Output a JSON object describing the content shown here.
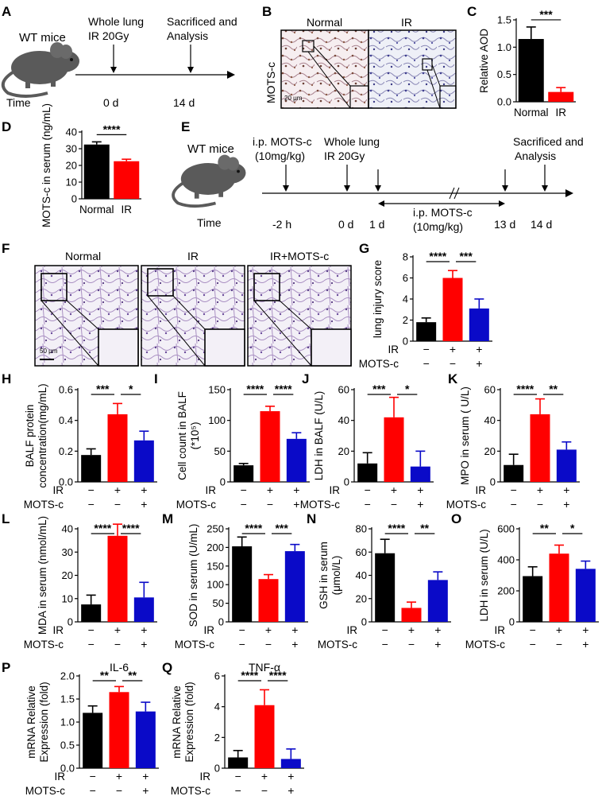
{
  "colors": {
    "black": "#000000",
    "red": "#ff0000",
    "blue": "#0a0ac8"
  },
  "panelA": {
    "letter": "A",
    "mouse": "WT mice",
    "ev1": [
      "Whole lung",
      "IR 20Gy"
    ],
    "ev2": [
      "Sacrificed and",
      "Analysis"
    ],
    "time": "Time",
    "t1": "0 d",
    "t2": "14 d"
  },
  "panelB": {
    "letter": "B",
    "normal": "Normal",
    "ir": "IR",
    "side": "MOTS-c",
    "scale": "20 μm"
  },
  "panelE": {
    "letter": "E",
    "mouse": "WT mice",
    "ev1": [
      "i.p. MOTS-c",
      "(10mg/kg)"
    ],
    "ev2": [
      "Whole lung",
      "IR 20Gy"
    ],
    "ev3": [
      "Sacrificed and",
      "Analysis"
    ],
    "mid": [
      "i.p. MOTS-c",
      "(10mg/kg)"
    ],
    "time": "Time",
    "ticks": [
      "-2 h",
      "0 d",
      "1 d",
      "13 d",
      "14 d"
    ]
  },
  "panelF": {
    "letter": "F",
    "titles": [
      "Normal",
      "IR",
      "IR+MOTS-c"
    ],
    "scale": "50 μm"
  },
  "treat": {
    "ir": "IR",
    "mots": "MOTS-c",
    "minus": "−",
    "plus": "+"
  },
  "chart_data": [
    {
      "id": "C",
      "type": "bar",
      "ylabel": "Relative AOD",
      "categories": [
        "Normal",
        "IR"
      ],
      "values": [
        1.15,
        0.18
      ],
      "errors": [
        0.22,
        0.08
      ],
      "colors": [
        "black",
        "red"
      ],
      "ylim": [
        0,
        1.5
      ],
      "ticks": [
        0.0,
        0.5,
        1.0,
        1.5
      ],
      "tick_labels": [
        "0.0",
        "0.5",
        "1.0",
        "1.5"
      ],
      "sig": [
        {
          "a": 0,
          "b": 1,
          "text": "***"
        }
      ]
    },
    {
      "id": "D",
      "type": "bar",
      "ylabel": "MOTS-c in serum (ng/mL)",
      "categories": [
        "Normal",
        "IR"
      ],
      "values": [
        32.5,
        22.5
      ],
      "errors": [
        1.6,
        1.2
      ],
      "colors": [
        "black",
        "red"
      ],
      "ylim": [
        0,
        40
      ],
      "ticks": [
        0,
        10,
        20,
        30,
        40
      ],
      "tick_labels": [
        "0",
        "10",
        "20",
        "30",
        "40"
      ],
      "sig": [
        {
          "a": 0,
          "b": 1,
          "text": "****"
        }
      ]
    },
    {
      "id": "G",
      "type": "bar",
      "ylabel": "lung injury score",
      "values": [
        1.8,
        6.0,
        3.1
      ],
      "errors": [
        0.4,
        0.7,
        0.9
      ],
      "colors": [
        "black",
        "red",
        "blue"
      ],
      "ylim": [
        0,
        8
      ],
      "ticks": [
        0,
        2,
        4,
        6,
        8
      ],
      "tick_labels": [
        "0",
        "2",
        "4",
        "6",
        "8"
      ],
      "ir": [
        "−",
        "+",
        "+"
      ],
      "mots": [
        "−",
        "−",
        "+"
      ],
      "sig": [
        {
          "a": 0,
          "b": 1,
          "text": "****"
        },
        {
          "a": 1,
          "b": 2,
          "text": "***"
        }
      ]
    },
    {
      "id": "H",
      "type": "bar",
      "ylabel": [
        "BALF protein",
        "concentration(mg/mL)"
      ],
      "values": [
        0.175,
        0.44,
        0.27
      ],
      "errors": [
        0.04,
        0.07,
        0.06
      ],
      "colors": [
        "black",
        "red",
        "blue"
      ],
      "ylim": [
        0,
        0.6
      ],
      "ticks": [
        0,
        0.2,
        0.4,
        0.6
      ],
      "tick_labels": [
        "0.0",
        "0.2",
        "0.4",
        "0.6"
      ],
      "ir": [
        "−",
        "+",
        "+"
      ],
      "mots": [
        "−",
        "−",
        "+"
      ],
      "sig": [
        {
          "a": 0,
          "b": 1,
          "text": "***"
        },
        {
          "a": 1,
          "b": 2,
          "text": "*"
        }
      ]
    },
    {
      "id": "I",
      "type": "bar",
      "ylabel": [
        "Cell count in BALF",
        "(*10⁵)"
      ],
      "values": [
        27,
        115,
        70
      ],
      "errors": [
        3,
        8,
        10
      ],
      "colors": [
        "black",
        "red",
        "blue"
      ],
      "ylim": [
        0,
        150
      ],
      "ticks": [
        0,
        50,
        100,
        150
      ],
      "tick_labels": [
        "0",
        "50",
        "100",
        "150"
      ],
      "ir": [
        "−",
        "+",
        "+"
      ],
      "mots": [
        "−",
        "−",
        "+"
      ],
      "sig": [
        {
          "a": 0,
          "b": 1,
          "text": "****"
        },
        {
          "a": 1,
          "b": 2,
          "text": "****"
        }
      ]
    },
    {
      "id": "J",
      "type": "bar",
      "ylabel": "LDH in BALF (U/L)",
      "values": [
        12,
        42,
        10
      ],
      "errors": [
        7,
        13,
        10
      ],
      "colors": [
        "black",
        "red",
        "blue"
      ],
      "ylim": [
        0,
        60
      ],
      "ticks": [
        0,
        20,
        40,
        60
      ],
      "tick_labels": [
        "0",
        "20",
        "40",
        "60"
      ],
      "ir": [
        "−",
        "+",
        "+"
      ],
      "mots": [
        "−",
        "−",
        "+"
      ],
      "sig": [
        {
          "a": 0,
          "b": 1,
          "text": "***"
        },
        {
          "a": 1,
          "b": 2,
          "text": "*"
        }
      ]
    },
    {
      "id": "K",
      "type": "bar",
      "ylabel": "MPO in serum ( U/L)",
      "values": [
        11,
        44,
        21
      ],
      "errors": [
        7,
        10,
        5
      ],
      "colors": [
        "black",
        "red",
        "blue"
      ],
      "ylim": [
        0,
        60
      ],
      "ticks": [
        0,
        20,
        40,
        60
      ],
      "tick_labels": [
        "0",
        "20",
        "40",
        "60"
      ],
      "ir": [
        "−",
        "+",
        "+"
      ],
      "mots": [
        "−",
        "−",
        "+"
      ],
      "sig": [
        {
          "a": 0,
          "b": 1,
          "text": "****"
        },
        {
          "a": 1,
          "b": 2,
          "text": "**"
        }
      ]
    },
    {
      "id": "L",
      "type": "bar",
      "ylabel": "MDA in serum (nmol/mL)",
      "values": [
        7.5,
        37,
        10.5
      ],
      "errors": [
        4,
        5,
        6.5
      ],
      "colors": [
        "black",
        "red",
        "blue"
      ],
      "ylim": [
        0,
        40
      ],
      "ticks": [
        0,
        10,
        20,
        30,
        40
      ],
      "tick_labels": [
        "0",
        "10",
        "20",
        "30",
        "40"
      ],
      "ir": [
        "−",
        "+",
        "+"
      ],
      "mots": [
        "−",
        "−",
        "+"
      ],
      "sig": [
        {
          "a": 0,
          "b": 1,
          "text": "****"
        },
        {
          "a": 1,
          "b": 2,
          "text": "****"
        }
      ]
    },
    {
      "id": "M",
      "type": "bar",
      "ylabel": "SOD in serum (U/mL)",
      "values": [
        203,
        115,
        190
      ],
      "errors": [
        25,
        12,
        18
      ],
      "colors": [
        "black",
        "red",
        "blue"
      ],
      "ylim": [
        0,
        250
      ],
      "ticks": [
        0,
        50,
        100,
        150,
        200,
        250
      ],
      "tick_labels": [
        "0",
        "50",
        "100",
        "150",
        "200",
        "250"
      ],
      "ir": [
        "−",
        "+",
        "+"
      ],
      "mots": [
        "−",
        "−",
        "+"
      ],
      "sig": [
        {
          "a": 0,
          "b": 1,
          "text": "****"
        },
        {
          "a": 1,
          "b": 2,
          "text": "***"
        }
      ]
    },
    {
      "id": "N",
      "type": "bar",
      "ylabel": [
        "GSH in serum",
        "(μmol/L)"
      ],
      "values": [
        59,
        12,
        36
      ],
      "errors": [
        12,
        5,
        7
      ],
      "colors": [
        "black",
        "red",
        "blue"
      ],
      "ylim": [
        0,
        80
      ],
      "ticks": [
        0,
        20,
        40,
        60,
        80
      ],
      "tick_labels": [
        "0",
        "20",
        "40",
        "60",
        "80"
      ],
      "ir": [
        "−",
        "+",
        "+"
      ],
      "mots": [
        "−",
        "−",
        "+"
      ],
      "sig": [
        {
          "a": 0,
          "b": 1,
          "text": "****"
        },
        {
          "a": 1,
          "b": 2,
          "text": "**"
        }
      ]
    },
    {
      "id": "O",
      "type": "bar",
      "ylabel": "LDH in serum (U/L)",
      "values": [
        295,
        440,
        342
      ],
      "errors": [
        60,
        55,
        50
      ],
      "colors": [
        "black",
        "red",
        "blue"
      ],
      "ylim": [
        0,
        600
      ],
      "ticks": [
        0,
        200,
        400,
        600
      ],
      "tick_labels": [
        "0",
        "200",
        "400",
        "600"
      ],
      "ir": [
        "−",
        "+",
        "+"
      ],
      "mots": [
        "−",
        "−",
        "+"
      ],
      "sig": [
        {
          "a": 0,
          "b": 1,
          "text": "**"
        },
        {
          "a": 1,
          "b": 2,
          "text": "*"
        }
      ]
    },
    {
      "id": "P",
      "type": "bar",
      "title": "IL-6",
      "ylabel": [
        "mRNA Relative",
        "Expression (fold)"
      ],
      "values": [
        1.2,
        1.65,
        1.23
      ],
      "errors": [
        0.15,
        0.12,
        0.2
      ],
      "colors": [
        "black",
        "red",
        "blue"
      ],
      "ylim": [
        0,
        2.0
      ],
      "ticks": [
        0,
        0.5,
        1.0,
        1.5,
        2.0
      ],
      "tick_labels": [
        "0.0",
        "0.5",
        "1.0",
        "1.5",
        "2.0"
      ],
      "ir": [
        "−",
        "+",
        "+"
      ],
      "mots": [
        "−",
        "−",
        "+"
      ],
      "sig": [
        {
          "a": 0,
          "b": 1,
          "text": "**"
        },
        {
          "a": 1,
          "b": 2,
          "text": "**"
        }
      ]
    },
    {
      "id": "Q",
      "type": "bar",
      "title": "TNF-α",
      "ylabel": [
        "mRNA Relative",
        "Expression (fold)"
      ],
      "values": [
        0.7,
        4.1,
        0.6
      ],
      "errors": [
        0.45,
        1.0,
        0.65
      ],
      "colors": [
        "black",
        "red",
        "blue"
      ],
      "ylim": [
        0,
        6
      ],
      "ticks": [
        0,
        2,
        4,
        6
      ],
      "tick_labels": [
        "0",
        "2",
        "4",
        "6"
      ],
      "ir": [
        "−",
        "+",
        "+"
      ],
      "mots": [
        "−",
        "−",
        "+"
      ],
      "sig": [
        {
          "a": 0,
          "b": 1,
          "text": "****"
        },
        {
          "a": 1,
          "b": 2,
          "text": "****"
        }
      ]
    }
  ]
}
